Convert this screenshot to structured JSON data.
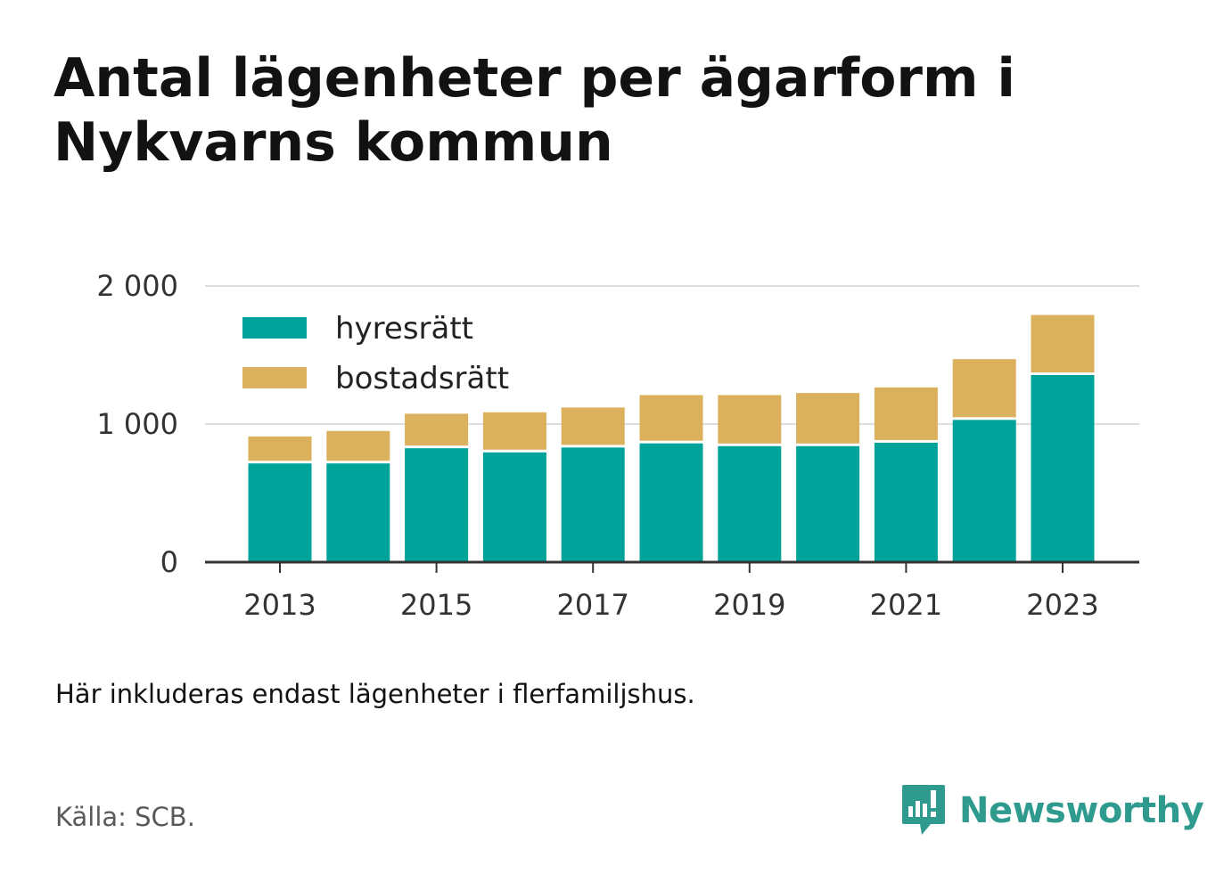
{
  "title": "Antal lägenheter per ägarform i Nykvarns kommun",
  "note": "Här inkluderas endast lägenheter i flerfamiljshus.",
  "source": "Källa: SCB.",
  "brand": "Newsworthy",
  "colors": {
    "hyresratt": "#00a39a",
    "bostadsratt": "#dbb15d",
    "grid": "#dddddd",
    "axis": "#333333",
    "brand": "#2f9a8e"
  },
  "chart_data": {
    "type": "bar",
    "stacked": true,
    "categories": [
      "2013",
      "2014",
      "2015",
      "2016",
      "2017",
      "2018",
      "2019",
      "2020",
      "2021",
      "2022",
      "2023"
    ],
    "x_tick_labels": [
      "2013",
      "2015",
      "2017",
      "2019",
      "2021",
      "2023"
    ],
    "series": [
      {
        "name": "hyresrätt",
        "color": "#00a39a",
        "values": [
          715,
          715,
          825,
          795,
          830,
          860,
          840,
          840,
          865,
          1030,
          1355
        ]
      },
      {
        "name": "bostadsrätt",
        "color": "#dbb15d",
        "values": [
          195,
          235,
          250,
          290,
          290,
          350,
          370,
          385,
          400,
          440,
          435
        ]
      }
    ],
    "y_ticks": [
      0,
      1000,
      2000
    ],
    "y_tick_labels": [
      "0",
      "1 000",
      "2 000"
    ],
    "ylim": [
      0,
      2000
    ],
    "grid": true,
    "legend_position": "top-left"
  }
}
